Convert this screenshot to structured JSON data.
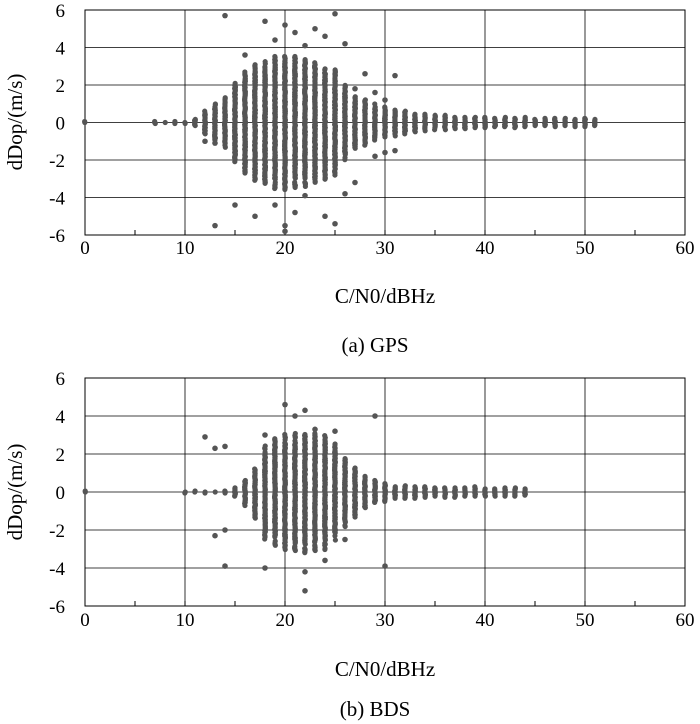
{
  "colors": {
    "point": "#555555",
    "grid": "#000000",
    "background": "#ffffff"
  },
  "chart_data": [
    {
      "type": "scatter",
      "id": "gps",
      "caption": "(a) GPS",
      "xlabel": "C/N0/dBHz",
      "ylabel": "dDop/(m/s)",
      "xlim": [
        0,
        60
      ],
      "ylim": [
        -6,
        6
      ],
      "xticks": [
        0,
        10,
        20,
        30,
        40,
        50,
        60
      ],
      "yticks": [
        -6,
        -4,
        -2,
        0,
        2,
        4,
        6
      ],
      "grid": true,
      "profile": [
        [
          0,
          0.0
        ],
        [
          7,
          0.05
        ],
        [
          8,
          0.05
        ],
        [
          9,
          0.05
        ],
        [
          10,
          0.05
        ],
        [
          11,
          0.15
        ],
        [
          12,
          0.6
        ],
        [
          13,
          1.0
        ],
        [
          14,
          1.3
        ],
        [
          15,
          2.1
        ],
        [
          16,
          2.7
        ],
        [
          17,
          3.1
        ],
        [
          18,
          3.3
        ],
        [
          19,
          3.5
        ],
        [
          20,
          3.6
        ],
        [
          21,
          3.5
        ],
        [
          22,
          3.4
        ],
        [
          23,
          3.2
        ],
        [
          24,
          3.0
        ],
        [
          25,
          2.8
        ],
        [
          26,
          2.0
        ],
        [
          27,
          1.4
        ],
        [
          28,
          1.2
        ],
        [
          29,
          1.0
        ],
        [
          30,
          0.8
        ],
        [
          31,
          0.7
        ],
        [
          32,
          0.6
        ],
        [
          33,
          0.5
        ],
        [
          34,
          0.45
        ],
        [
          35,
          0.4
        ],
        [
          36,
          0.38
        ],
        [
          37,
          0.35
        ],
        [
          38,
          0.33
        ],
        [
          39,
          0.3
        ],
        [
          40,
          0.28
        ],
        [
          41,
          0.27
        ],
        [
          42,
          0.26
        ],
        [
          43,
          0.25
        ],
        [
          44,
          0.25
        ],
        [
          45,
          0.24
        ],
        [
          46,
          0.23
        ],
        [
          47,
          0.22
        ],
        [
          48,
          0.22
        ],
        [
          49,
          0.21
        ],
        [
          50,
          0.2
        ],
        [
          51,
          0.18
        ]
      ],
      "outliers": [
        [
          14,
          5.7
        ],
        [
          18,
          5.4
        ],
        [
          20,
          5.2
        ],
        [
          21,
          4.8
        ],
        [
          23,
          5.0
        ],
        [
          24,
          4.6
        ],
        [
          25,
          5.8
        ],
        [
          26,
          4.2
        ],
        [
          16,
          3.6
        ],
        [
          19,
          4.4
        ],
        [
          22,
          4.1
        ],
        [
          28,
          2.6
        ],
        [
          29,
          1.6
        ],
        [
          30,
          1.2
        ],
        [
          31,
          2.5
        ],
        [
          27,
          1.8
        ],
        [
          13,
          -5.5
        ],
        [
          15,
          -4.4
        ],
        [
          17,
          -5.0
        ],
        [
          19,
          -4.4
        ],
        [
          20,
          -5.5
        ],
        [
          20,
          -5.8
        ],
        [
          21,
          -4.8
        ],
        [
          22,
          -3.9
        ],
        [
          24,
          -5.0
        ],
        [
          25,
          -5.4
        ],
        [
          26,
          -3.8
        ],
        [
          27,
          -3.2
        ],
        [
          29,
          -1.8
        ],
        [
          30,
          -1.6
        ],
        [
          31,
          -1.5
        ],
        [
          12,
          -1.0
        ],
        [
          13,
          -1.1
        ],
        [
          11,
          0.1
        ],
        [
          12,
          0.4
        ]
      ]
    },
    {
      "type": "scatter",
      "id": "bds",
      "caption": "(b) BDS",
      "xlabel": "C/N0/dBHz",
      "ylabel": "dDop/(m/s)",
      "xlim": [
        0,
        60
      ],
      "ylim": [
        -6,
        6
      ],
      "xticks": [
        0,
        10,
        20,
        30,
        40,
        50,
        60
      ],
      "yticks": [
        -6,
        -4,
        -2,
        0,
        2,
        4,
        6
      ],
      "grid": true,
      "profile": [
        [
          0,
          0.0
        ],
        [
          10,
          0.05
        ],
        [
          11,
          0.05
        ],
        [
          12,
          0.05
        ],
        [
          13,
          0.05
        ],
        [
          14,
          0.05
        ],
        [
          15,
          0.2
        ],
        [
          16,
          0.7
        ],
        [
          17,
          1.4
        ],
        [
          18,
          2.5
        ],
        [
          19,
          2.8
        ],
        [
          20,
          3.0
        ],
        [
          21,
          3.1
        ],
        [
          22,
          3.2
        ],
        [
          23,
          3.1
        ],
        [
          24,
          3.0
        ],
        [
          25,
          2.6
        ],
        [
          26,
          1.8
        ],
        [
          27,
          1.3
        ],
        [
          28,
          0.8
        ],
        [
          29,
          0.6
        ],
        [
          30,
          0.5
        ],
        [
          31,
          0.4
        ],
        [
          32,
          0.35
        ],
        [
          33,
          0.32
        ],
        [
          34,
          0.3
        ],
        [
          35,
          0.28
        ],
        [
          36,
          0.27
        ],
        [
          37,
          0.26
        ],
        [
          38,
          0.25
        ],
        [
          39,
          0.25
        ],
        [
          40,
          0.24
        ],
        [
          41,
          0.22
        ],
        [
          42,
          0.22
        ],
        [
          43,
          0.21
        ],
        [
          44,
          0.2
        ]
      ],
      "outliers": [
        [
          12,
          2.9
        ],
        [
          13,
          2.3
        ],
        [
          14,
          2.4
        ],
        [
          18,
          3.0
        ],
        [
          20,
          4.6
        ],
        [
          21,
          4.0
        ],
        [
          22,
          4.3
        ],
        [
          23,
          3.3
        ],
        [
          25,
          3.2
        ],
        [
          29,
          4.0
        ],
        [
          13,
          -2.3
        ],
        [
          14,
          -2.0
        ],
        [
          14,
          -3.9
        ],
        [
          18,
          -4.0
        ],
        [
          22,
          -5.2
        ],
        [
          22,
          -4.2
        ],
        [
          24,
          -3.6
        ],
        [
          26,
          -2.5
        ],
        [
          30,
          -3.9
        ],
        [
          27,
          -1.2
        ]
      ]
    }
  ]
}
